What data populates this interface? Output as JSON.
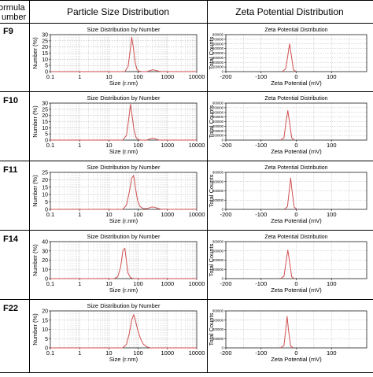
{
  "table": {
    "col_formula_line1": "ormula",
    "col_formula_line2": "umber",
    "col_size": "Particle Size Distribution",
    "col_zeta": "Zeta Potential Distribution"
  },
  "colors": {
    "trace": "#d05050",
    "axis": "#222222",
    "grid": "#b8b8b8",
    "border": "#000000"
  },
  "chart_data": [
    {
      "type": "line",
      "panel": "size",
      "row": "F9",
      "title": "Size Distribution by Number",
      "xlabel": "Size (r.nm)",
      "ylabel": "Number (%)",
      "xscale": "log",
      "xlim": [
        0.1,
        10000
      ],
      "ylim": [
        0,
        30
      ],
      "yticks": [
        0,
        5,
        10,
        15,
        20,
        25,
        30
      ],
      "xticks": [
        0.1,
        1,
        10,
        100,
        1000,
        10000
      ],
      "xtick_labels": [
        "0.1",
        "1",
        "10",
        "100",
        "1000",
        "10000"
      ],
      "series": [
        {
          "x": [
            35,
            45,
            52,
            60,
            68,
            78,
            90,
            105,
            130,
            200,
            260,
            320,
            400,
            500,
            600
          ],
          "y": [
            0,
            4,
            15,
            28,
            20,
            8,
            2,
            0.5,
            0,
            0,
            1,
            1.5,
            1,
            0.3,
            0
          ]
        }
      ]
    },
    {
      "type": "line",
      "panel": "zeta",
      "row": "F9",
      "title": "Zeta Potential Distribution",
      "xlabel": "Zeta Potential (mV)",
      "ylabel": "Total Counts",
      "xlim": [
        -200,
        200
      ],
      "ylim": [
        0,
        800000
      ],
      "xticks": [
        -200,
        -100,
        0,
        100
      ],
      "xtick_labels": [
        "-200",
        "-100",
        "0",
        "100"
      ],
      "yticks": [
        0,
        100000,
        200000,
        300000,
        400000,
        500000,
        600000,
        700000,
        800000
      ],
      "ytick_labels": [
        "0",
        "100000",
        "200000",
        "300000",
        "400000",
        "500000",
        "600000",
        "700000",
        "800000"
      ],
      "series": [
        {
          "x": [
            -40,
            -30,
            -24,
            -19,
            -14,
            -8,
            0
          ],
          "y": [
            0,
            60000,
            350000,
            600000,
            350000,
            40000,
            0
          ]
        }
      ]
    },
    {
      "type": "line",
      "panel": "size",
      "row": "F10",
      "title": "Size Distribution by Number",
      "xlabel": "Size (r.nm)",
      "ylabel": "Number (%)",
      "xscale": "log",
      "xlim": [
        0.1,
        10000
      ],
      "ylim": [
        0,
        30
      ],
      "yticks": [
        0,
        5,
        10,
        15,
        20,
        25,
        30
      ],
      "xticks": [
        0.1,
        1,
        10,
        100,
        1000,
        10000
      ],
      "xtick_labels": [
        "0.1",
        "1",
        "10",
        "100",
        "1000",
        "10000"
      ],
      "series": [
        {
          "x": [
            30,
            40,
            48,
            55,
            62,
            72,
            85,
            100,
            120,
            200,
            250,
            320,
            400,
            500
          ],
          "y": [
            0,
            4,
            18,
            29,
            20,
            8,
            2,
            0.5,
            0,
            0,
            1,
            1.5,
            1,
            0
          ]
        }
      ]
    },
    {
      "type": "line",
      "panel": "zeta",
      "row": "F10",
      "title": "Zeta Potential Distribution",
      "xlabel": "Zeta Potential (mV)",
      "ylabel": "Total Counts",
      "xlim": [
        -200,
        200
      ],
      "ylim": [
        0,
        800000
      ],
      "xticks": [
        -200,
        -100,
        0,
        100
      ],
      "xtick_labels": [
        "-200",
        "-100",
        "0",
        "100"
      ],
      "yticks": [
        0,
        100000,
        200000,
        300000,
        400000,
        500000,
        600000,
        700000,
        800000
      ],
      "ytick_labels": [
        "0",
        "100000",
        "200000",
        "300000",
        "400000",
        "500000",
        "600000",
        "700000",
        "800000"
      ],
      "series": [
        {
          "x": [
            -45,
            -35,
            -29,
            -24,
            -19,
            -13,
            -5
          ],
          "y": [
            0,
            50000,
            400000,
            640000,
            380000,
            50000,
            0
          ]
        }
      ]
    },
    {
      "type": "line",
      "panel": "size",
      "row": "F11",
      "title": "Size Distribution by Number",
      "xlabel": "Size (r.nm)",
      "ylabel": "Number (%)",
      "xscale": "log",
      "xlim": [
        0.1,
        10000
      ],
      "ylim": [
        0,
        25
      ],
      "yticks": [
        0,
        5,
        10,
        15,
        20,
        25
      ],
      "xticks": [
        0.1,
        1,
        10,
        100,
        1000,
        10000
      ],
      "xtick_labels": [
        "0.1",
        "1",
        "10",
        "100",
        "1000",
        "10000"
      ],
      "series": [
        {
          "x": [
            30,
            40,
            50,
            60,
            70,
            80,
            95,
            115,
            150,
            200,
            280,
            350,
            450,
            600
          ],
          "y": [
            0,
            3,
            12,
            21,
            23,
            15,
            6,
            2,
            0.5,
            0.5,
            1.5,
            1.5,
            0.8,
            0
          ]
        }
      ]
    },
    {
      "type": "line",
      "panel": "zeta",
      "row": "F11",
      "title": "Zeta Potential Distribution",
      "xlabel": "Zeta Potential (mV)",
      "ylabel": "Total Counts",
      "xlim": [
        -200,
        200
      ],
      "ylim": [
        0,
        800000
      ],
      "xticks": [
        -200,
        -100,
        0,
        100
      ],
      "xtick_labels": [
        "-200",
        "-100",
        "0",
        "100"
      ],
      "yticks": [
        0,
        200000,
        400000,
        600000,
        800000
      ],
      "ytick_labels": [
        "0",
        "200000",
        "400000",
        "600000",
        "800000"
      ],
      "series": [
        {
          "x": [
            -35,
            -25,
            -20,
            -16,
            -12,
            -6,
            2
          ],
          "y": [
            0,
            60000,
            400000,
            680000,
            400000,
            50000,
            0
          ]
        }
      ]
    },
    {
      "type": "line",
      "panel": "size",
      "row": "F14",
      "title": "Size Distribution by Number",
      "xlabel": "Size (r.nm)",
      "ylabel": "Number (%)",
      "xscale": "log",
      "xlim": [
        0.1,
        10000
      ],
      "ylim": [
        0,
        40
      ],
      "yticks": [
        0,
        10,
        20,
        30,
        40
      ],
      "xticks": [
        0.1,
        1,
        10,
        100,
        1000,
        10000
      ],
      "xtick_labels": [
        "0.1",
        "1",
        "10",
        "100",
        "1000",
        "10000"
      ],
      "series": [
        {
          "x": [
            15,
            20,
            25,
            30,
            35,
            40,
            45,
            55,
            70
          ],
          "y": [
            0,
            2,
            12,
            30,
            33,
            18,
            6,
            1,
            0
          ]
        }
      ]
    },
    {
      "type": "line",
      "panel": "zeta",
      "row": "F14",
      "title": "Zeta Potential Distribution",
      "xlabel": "Zeta Potential (mV)",
      "ylabel": "Total Counts",
      "xlim": [
        -200,
        200
      ],
      "ylim": [
        0,
        800000
      ],
      "xticks": [
        -200,
        -100,
        0,
        100
      ],
      "xtick_labels": [
        "-200",
        "-100",
        "0",
        "100"
      ],
      "yticks": [
        0,
        200000,
        400000,
        600000,
        800000
      ],
      "ytick_labels": [
        "0",
        "200000",
        "400000",
        "600000",
        "800000"
      ],
      "series": [
        {
          "x": [
            -45,
            -35,
            -29,
            -24,
            -19,
            -13,
            -5
          ],
          "y": [
            0,
            50000,
            360000,
            620000,
            360000,
            40000,
            0
          ]
        }
      ]
    },
    {
      "type": "line",
      "panel": "size",
      "row": "F22",
      "title": "Size Distribution by Number",
      "xlabel": "Size (r.nm)",
      "ylabel": "Number (%)",
      "xscale": "log",
      "xlim": [
        0.1,
        10000
      ],
      "ylim": [
        0,
        20
      ],
      "yticks": [
        0,
        5,
        10,
        15,
        20
      ],
      "xticks": [
        0.1,
        1,
        10,
        100,
        1000,
        10000
      ],
      "xtick_labels": [
        "0.1",
        "1",
        "10",
        "100",
        "1000",
        "10000"
      ],
      "series": [
        {
          "x": [
            30,
            40,
            50,
            60,
            70,
            80,
            95,
            120,
            150,
            200,
            260
          ],
          "y": [
            0,
            2,
            8,
            15,
            18,
            15,
            10,
            5,
            2,
            0.5,
            0
          ]
        }
      ]
    },
    {
      "type": "line",
      "panel": "zeta",
      "row": "F22",
      "title": "",
      "xlabel": "Zeta Potential (mV)",
      "ylabel": "Total Counts",
      "xlim": [
        -200,
        200
      ],
      "ylim": [
        0,
        800000
      ],
      "xticks": [
        -200,
        -100,
        0,
        100
      ],
      "xtick_labels": [
        "-200",
        "-100",
        "0",
        "100"
      ],
      "yticks": [
        0,
        200000,
        400000,
        600000,
        800000
      ],
      "ytick_labels": [
        "0",
        "200000",
        "400000",
        "600000",
        "800000"
      ],
      "series": [
        {
          "x": [
            -45,
            -35,
            -30,
            -26,
            -22,
            -16,
            -8
          ],
          "y": [
            0,
            50000,
            380000,
            680000,
            380000,
            40000,
            0
          ]
        }
      ]
    }
  ]
}
